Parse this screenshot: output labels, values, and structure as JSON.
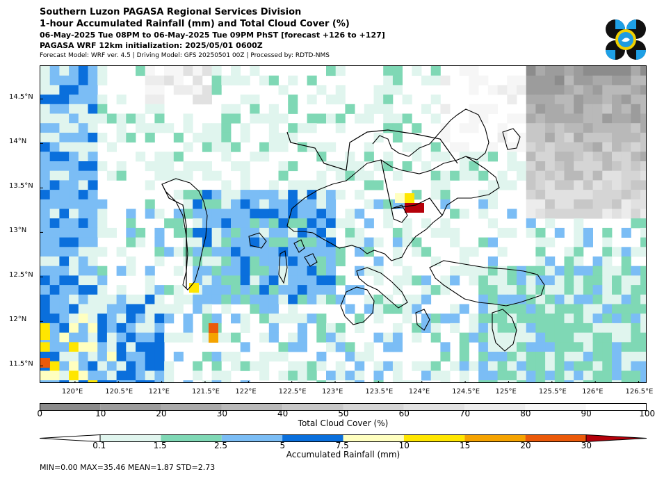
{
  "header": {
    "line1": "Southern Luzon PAGASA Regional Services Division",
    "line2": "1-hour Accumulated Rainfall (mm) and Total Cloud Cover (%)",
    "line3": "06-May-2025 Tue 08PM to 06-May-2025 Tue 09PM PhST [forecast +126 to +127]",
    "line4": "PAGASA WRF 12km initialization: 2025/05/01 0600Z",
    "line5": "Forecast Model: WRF ver. 4.5 | Driving Model: GFS 20250501 00Z | Processed by: RDTD-NMS"
  },
  "map": {
    "lon_range": [
      119.6,
      126.6
    ],
    "lat_range": [
      11.3,
      14.87
    ],
    "lon_ticks": [
      "120°E",
      "120.5°E",
      "121°E",
      "121.5°E",
      "122°E",
      "122.5°E",
      "123°E",
      "123.5°E",
      "124°E",
      "124.5°E",
      "125°E",
      "125.5°E",
      "126°E",
      "126.5°E"
    ],
    "lat_ticks": [
      "11.5°N",
      "12°N",
      "12.5°N",
      "13°N",
      "13.5°N",
      "14°N",
      "14.5°N"
    ]
  },
  "cloud_colorbar": {
    "label": "Total Cloud Cover (%)",
    "ticks": [
      "0",
      "10",
      "20",
      "30",
      "40",
      "50",
      "60",
      "70",
      "80",
      "90",
      "100"
    ],
    "colors": [
      "#8c8c8c",
      "#9c9c9c",
      "#aaaaaa",
      "#b9b9b9",
      "#c7c7c7",
      "#d5d5d5",
      "#e1e1e1",
      "#ececec",
      "#f6f6f6",
      "#ffffff"
    ]
  },
  "rain_colorbar": {
    "label": "Accumulated Rainfall (mm)",
    "ticks": [
      "0.1",
      "1.5",
      "2.5",
      "5",
      "7.5",
      "10",
      "15",
      "20",
      "30"
    ],
    "colors": [
      "#ffffff",
      "#e0f5ee",
      "#7fd8b5",
      "#7bbdf5",
      "#0a6fdc",
      "#ffffc0",
      "#ffe600",
      "#f5a300",
      "#eb5a0a",
      "#b5000a"
    ]
  },
  "stats": "MIN=0.00   MAX=35.46   MEAN=1.87   STD=2.73"
}
